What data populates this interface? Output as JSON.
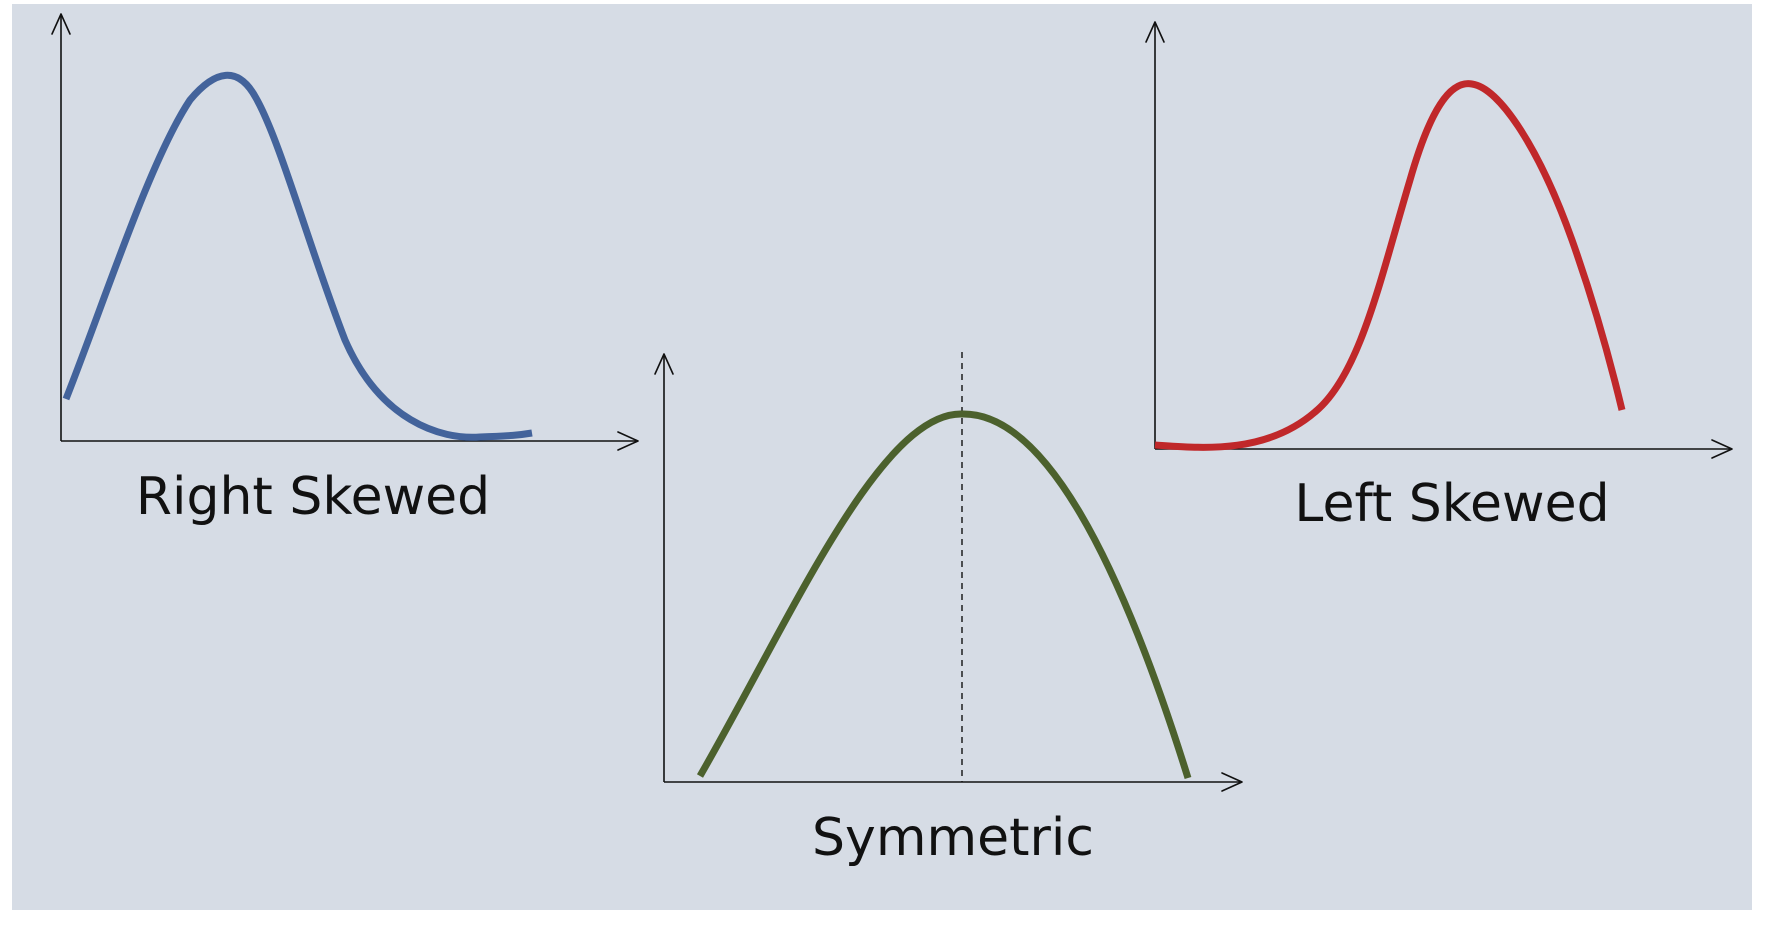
{
  "colors": {
    "background": "#d6dce5",
    "page": "#ffffff",
    "axes": "#111111",
    "right_skewed": "#43639b",
    "symmetric": "#4c612d",
    "left_skewed": "#c0282a"
  },
  "panels": [
    {
      "id": "right-skewed",
      "caption": "Right Skewed",
      "color_key": "right_skewed",
      "shape": "right-skewed",
      "median_guide": false
    },
    {
      "id": "symmetric",
      "caption": "Symmetric",
      "color_key": "symmetric",
      "shape": "symmetric",
      "median_guide": true
    },
    {
      "id": "left-skewed",
      "caption": "Left Skewed",
      "color_key": "left_skewed",
      "shape": "left-skewed",
      "median_guide": false
    }
  ]
}
